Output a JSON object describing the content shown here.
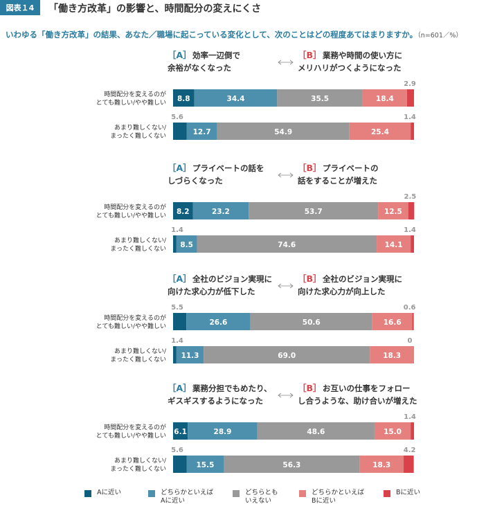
{
  "header": {
    "figure_tag": "図表１4",
    "title": "「働き方改革」の影響と、時間配分の変えにくさ"
  },
  "subtitle": {
    "text": "いわゆる「働き方改革」の結果、あなた／職場に起こっている変化として、次のことはどの程度あてはまりますか。",
    "note": "（n=601／%）"
  },
  "colors": {
    "a": "#0f5e7d",
    "a_lean": "#4d90ad",
    "neutral": "#999999",
    "b_lean": "#e5807e",
    "b": "#d9424a",
    "teal_text": "#2a7da0",
    "red_text": "#d9424a"
  },
  "chart_data": {
    "type": "stacked-bar-100",
    "unit": "%",
    "categories": [
      "Aに近い",
      "どちらかといえばAに近い",
      "どちらともいえない",
      "どちらかといえばBに近い",
      "Bに近い"
    ],
    "row_labels": [
      [
        "時間配分を変えるのが",
        "とても難しい/やや難しい"
      ],
      [
        "あまり難しくない/",
        "まったく難しくない"
      ]
    ],
    "sections": [
      {
        "a_label": "［A］",
        "a_text": [
          "効率一辺倒で",
          "余裕がなくなった"
        ],
        "b_label": "［B］",
        "b_text": [
          "業務や時間の使い方に",
          "メリハリがつくようになった"
        ],
        "rows": [
          {
            "values": [
              8.8,
              34.4,
              35.5,
              18.4,
              2.9
            ],
            "labels": [
              "8.8",
              "34.4",
              "35.5",
              "18.4",
              "2.9"
            ]
          },
          {
            "values": [
              5.6,
              12.7,
              54.9,
              25.4,
              1.4
            ],
            "labels": [
              "5.6",
              "12.7",
              "54.9",
              "25.4",
              "1.4"
            ]
          }
        ]
      },
      {
        "a_label": "［A］",
        "a_text": [
          "プライベートの話を",
          "しづらくなった"
        ],
        "b_label": "［B］",
        "b_text": [
          "プライベートの",
          "話をすることが増えた"
        ],
        "rows": [
          {
            "values": [
              8.2,
              23.2,
              53.7,
              12.5,
              2.5
            ],
            "labels": [
              "8.2",
              "23.2",
              "53.7",
              "12.5",
              "2.5"
            ]
          },
          {
            "values": [
              1.4,
              8.5,
              74.6,
              14.1,
              1.4
            ],
            "labels": [
              "1.4",
              "8.5",
              "74.6",
              "14.1",
              "1.4"
            ]
          }
        ]
      },
      {
        "a_label": "［A］",
        "a_text": [
          "全社のビジョン実現に",
          "向けた求心力が低下した"
        ],
        "b_label": "［B］",
        "b_text": [
          "全社のビジョン実現に",
          "向けた求心力が向上した"
        ],
        "rows": [
          {
            "values": [
              5.5,
              26.6,
              50.6,
              16.6,
              0.6
            ],
            "labels": [
              "5.5",
              "26.6",
              "50.6",
              "16.6",
              "0.6"
            ]
          },
          {
            "values": [
              1.4,
              11.3,
              69.0,
              18.3,
              0
            ],
            "labels": [
              "1.4",
              "11.3",
              "69.0",
              "18.3",
              "0"
            ]
          }
        ]
      },
      {
        "a_label": "［A］",
        "a_text": [
          "業務分担でもめたり、",
          "ギスギスするようになった"
        ],
        "b_label": "［B］",
        "b_text": [
          "お互いの仕事をフォロー",
          "し合うような、助け合いが増えた"
        ],
        "rows": [
          {
            "values": [
              6.1,
              28.9,
              48.6,
              15.0,
              1.4
            ],
            "labels": [
              "6.1",
              "28.9",
              "48.6",
              "15.0",
              "1.4"
            ]
          },
          {
            "values": [
              5.6,
              15.5,
              56.3,
              18.3,
              4.2
            ],
            "labels": [
              "5.6",
              "15.5",
              "56.3",
              "18.3",
              "4.2"
            ]
          }
        ]
      }
    ]
  },
  "legend": [
    {
      "label": "Aに近い"
    },
    {
      "label": "どちらかといえば\nAに近い"
    },
    {
      "label": "どちらとも\nいえない"
    },
    {
      "label": "どちらかといえば\nBに近い"
    },
    {
      "label": "Bに近い"
    }
  ]
}
